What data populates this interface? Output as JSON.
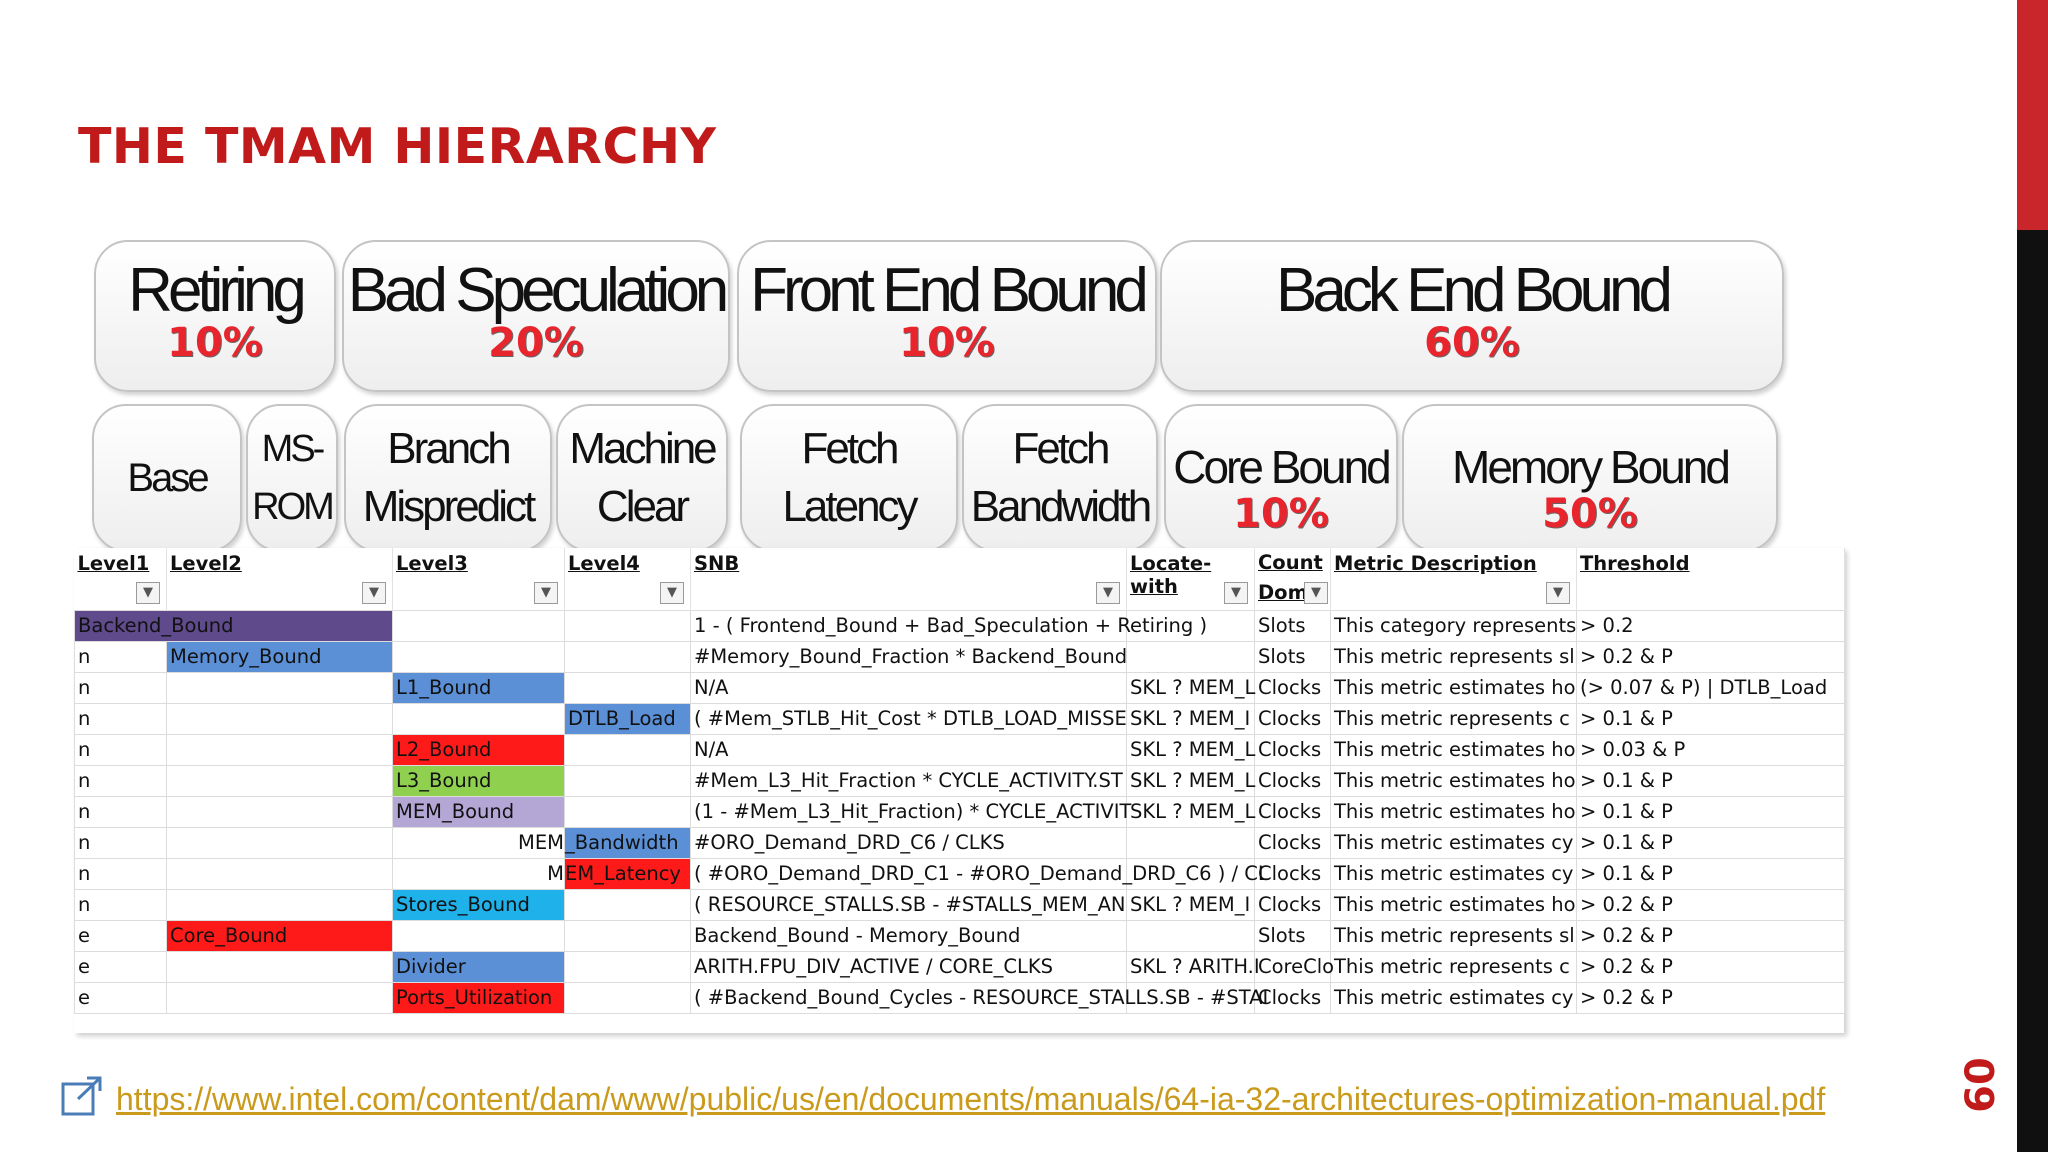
{
  "slide": {
    "title": "THE TMAM HIERARCHY",
    "page_number": "60",
    "link": "https://www.intel.com/content/dam/www/public/us/en/documents/manuals/64-ia-32-architectures-optimization-manual.pdf"
  },
  "top_boxes": [
    {
      "label": "Retiring",
      "pct": "10%"
    },
    {
      "label": "Bad Speculation",
      "pct": "20%"
    },
    {
      "label": "Front End Bound",
      "pct": "10%"
    },
    {
      "label": "Back End Bound",
      "pct": "60%"
    }
  ],
  "sub_boxes": [
    {
      "line1": "Base",
      "line2": "",
      "pct": ""
    },
    {
      "line1": "MS-",
      "line2": "ROM",
      "pct": ""
    },
    {
      "line1": "Branch",
      "line2": "Mispredict",
      "pct": ""
    },
    {
      "line1": "Machine",
      "line2": "Clear",
      "pct": ""
    },
    {
      "line1": "Fetch",
      "line2": "Latency",
      "pct": ""
    },
    {
      "line1": "Fetch",
      "line2": "Bandwidth",
      "pct": ""
    },
    {
      "line1": "Core Bound",
      "line2": "",
      "pct": "10%"
    },
    {
      "line1": "Memory Bound",
      "line2": "",
      "pct": "50%"
    }
  ],
  "table": {
    "headers": [
      "Level1",
      "Level2",
      "Level3",
      "Level4",
      "SNB",
      "Locate-with",
      "Count Dom",
      "Metric Description",
      "Threshold"
    ],
    "colors": {
      "purple": "#5f4a8b",
      "blue": "#5b8fd6",
      "red": "#ff1a1a",
      "green": "#8fd14f",
      "lavender": "#b4a7d6",
      "cyan": "#1eb1ea"
    },
    "rows": [
      [
        "Backend_Bound",
        "",
        "",
        "",
        "1 - ( Frontend_Bound + Bad_Speculation + Retiring )",
        "",
        "Slots",
        "This category represents",
        "> 0.2"
      ],
      [
        "n",
        "Memory_Bound",
        "",
        "",
        "#Memory_Bound_Fraction * Backend_Bound",
        "",
        "Slots",
        "This metric represents sl",
        "> 0.2 & P"
      ],
      [
        "n",
        "",
        "L1_Bound",
        "",
        "N/A",
        "SKL ? MEM_L",
        "Clocks",
        "This metric estimates ho",
        "(> 0.07 & P) | DTLB_Load"
      ],
      [
        "n",
        "",
        "",
        "DTLB_Load",
        "( #Mem_STLB_Hit_Cost * DTLB_LOAD_MISSE",
        "SKL ? MEM_I",
        "Clocks",
        "This metric represents c",
        "> 0.1 & P"
      ],
      [
        "n",
        "",
        "L2_Bound",
        "",
        "N/A",
        "SKL ? MEM_L",
        "Clocks",
        "This metric estimates ho",
        "> 0.03 & P"
      ],
      [
        "n",
        "",
        "L3_Bound",
        "",
        "#Mem_L3_Hit_Fraction * CYCLE_ACTIVITY.ST",
        "SKL ? MEM_L",
        "Clocks",
        "This metric estimates ho",
        "> 0.1 & P"
      ],
      [
        "n",
        "",
        "MEM_Bound",
        "",
        "(1 - #Mem_L3_Hit_Fraction) * CYCLE_ACTIVIT",
        "SKL ? MEM_L",
        "Clocks",
        "This metric estimates ho",
        "> 0.1 & P"
      ],
      [
        "n",
        "",
        "MEM",
        "_Bandwidth",
        "#ORO_Demand_DRD_C6 / CLKS",
        "",
        "Clocks",
        "This metric estimates cy",
        "> 0.1 & P"
      ],
      [
        "n",
        "",
        "M",
        "EM_Latency",
        "( #ORO_Demand_DRD_C1 - #ORO_Demand_DRD_C6 ) / CL",
        "",
        "Clocks",
        "This metric estimates cy",
        "> 0.1 & P"
      ],
      [
        "n",
        "",
        "Stores_Bound",
        "",
        "( RESOURCE_STALLS.SB - #STALLS_MEM_AN",
        "SKL ? MEM_I",
        "Clocks",
        "This metric estimates ho",
        "> 0.2 & P"
      ],
      [
        "e",
        "Core_Bound",
        "",
        "",
        "Backend_Bound - Memory_Bound",
        "",
        "Slots",
        "This metric represents sl",
        "> 0.2 & P"
      ],
      [
        "e",
        "",
        "Divider",
        "",
        "ARITH.FPU_DIV_ACTIVE / CORE_CLKS",
        "SKL ? ARITH.I",
        "CoreClo",
        "This metric represents c",
        "> 0.2 & P"
      ],
      [
        "e",
        "",
        "Ports_Utilization",
        "",
        "( #Backend_Bound_Cycles - RESOURCE_STALLS.SB - #STAI",
        "",
        "Clocks",
        "This metric estimates cy",
        "> 0.2 & P"
      ]
    ]
  }
}
